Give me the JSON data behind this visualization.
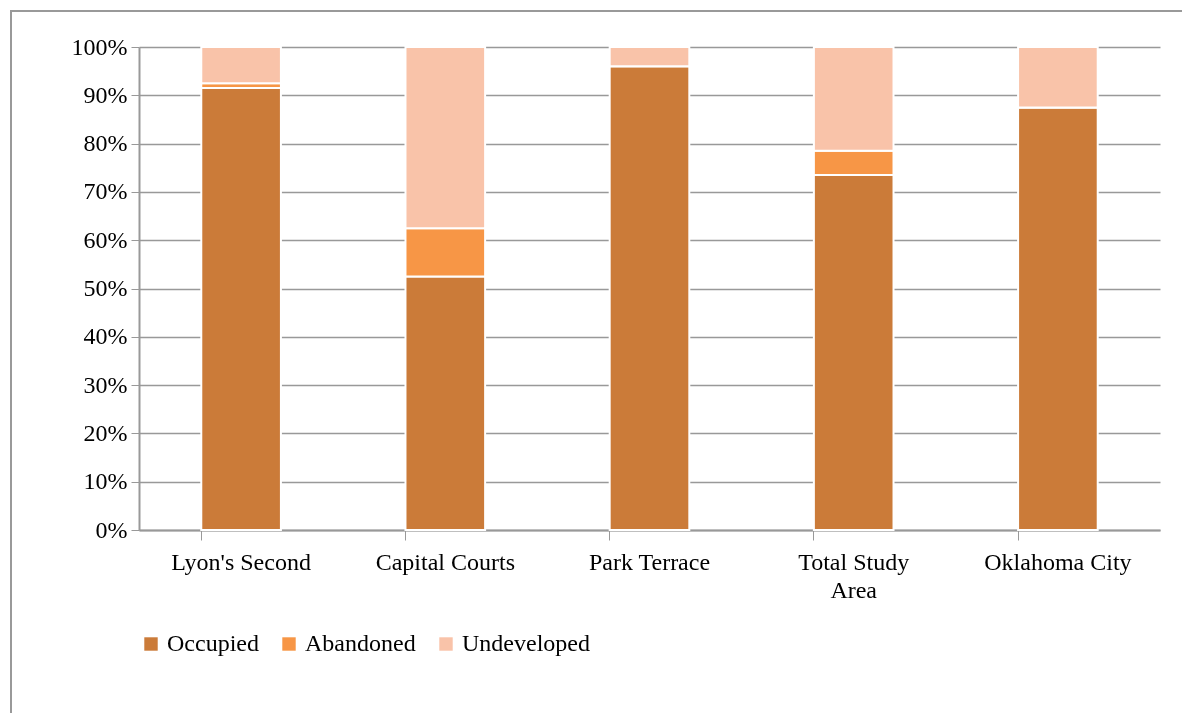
{
  "chart_data": {
    "type": "bar",
    "stacked": true,
    "categories": [
      "Lyon's Second",
      "Capital Courts",
      "Park Terrace",
      "Total Study Area",
      "Oklahoma City"
    ],
    "series": [
      {
        "name": "Occupied",
        "color": "#cb7b39",
        "values": [
          91.5,
          52.5,
          96,
          73.5,
          87.5
        ]
      },
      {
        "name": "Abandoned",
        "color": "#f79646",
        "values": [
          1,
          10,
          0,
          5,
          0
        ]
      },
      {
        "name": "Undeveloped",
        "color": "#f9c3a9",
        "values": [
          7.5,
          37.5,
          4,
          21.5,
          12.5
        ]
      }
    ],
    "ylim": [
      0,
      100
    ],
    "yticks": [
      {
        "value": 0,
        "label": "0%"
      },
      {
        "value": 10,
        "label": "10%"
      },
      {
        "value": 20,
        "label": "20%"
      },
      {
        "value": 30,
        "label": "30%"
      },
      {
        "value": 40,
        "label": "40%"
      },
      {
        "value": 50,
        "label": "50%"
      },
      {
        "value": 60,
        "label": "60%"
      },
      {
        "value": 70,
        "label": "70%"
      },
      {
        "value": 80,
        "label": "80%"
      },
      {
        "value": 90,
        "label": "90%"
      },
      {
        "value": 100,
        "label": "100%"
      }
    ],
    "grid": "y",
    "legend": "bottom"
  }
}
